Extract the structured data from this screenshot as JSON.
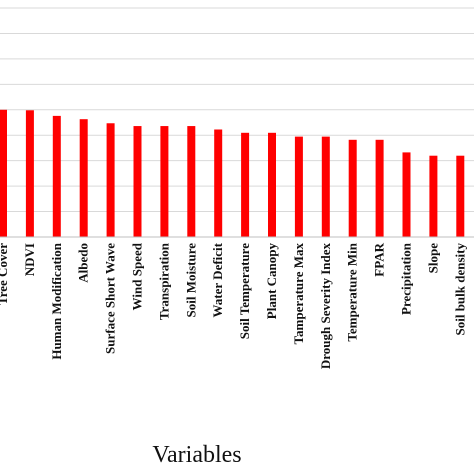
{
  "chart_data": {
    "type": "bar",
    "title": "",
    "xlabel": "Variables",
    "ylabel": "",
    "grid": true,
    "bar_color": "#ff0000",
    "grid_color": "#d9d9d9",
    "ylim": [
      0,
      0.18
    ],
    "categories": [
      "Tree Cover",
      "NDVI",
      "Human Modification",
      "Albedo",
      "Surface Short Wave",
      "Wind Speed",
      "Transpiration",
      "Soil Moisture",
      "Water Deficit",
      "Soil Temperature",
      "Plant Canopy",
      "Tamperature Max",
      "Drough Severity Index",
      "Temperature Min",
      "FPAR",
      "Precipitation",
      "Slope",
      "Soil bulk density"
    ],
    "series": [
      {
        "values": [
          0.1,
          0.0996,
          0.0952,
          0.0926,
          0.0894,
          0.0872,
          0.0872,
          0.0872,
          0.0845,
          0.0819,
          0.0819,
          0.0789,
          0.0789,
          0.0764,
          0.0764,
          0.0665,
          0.0639,
          0.0639
        ]
      }
    ]
  }
}
